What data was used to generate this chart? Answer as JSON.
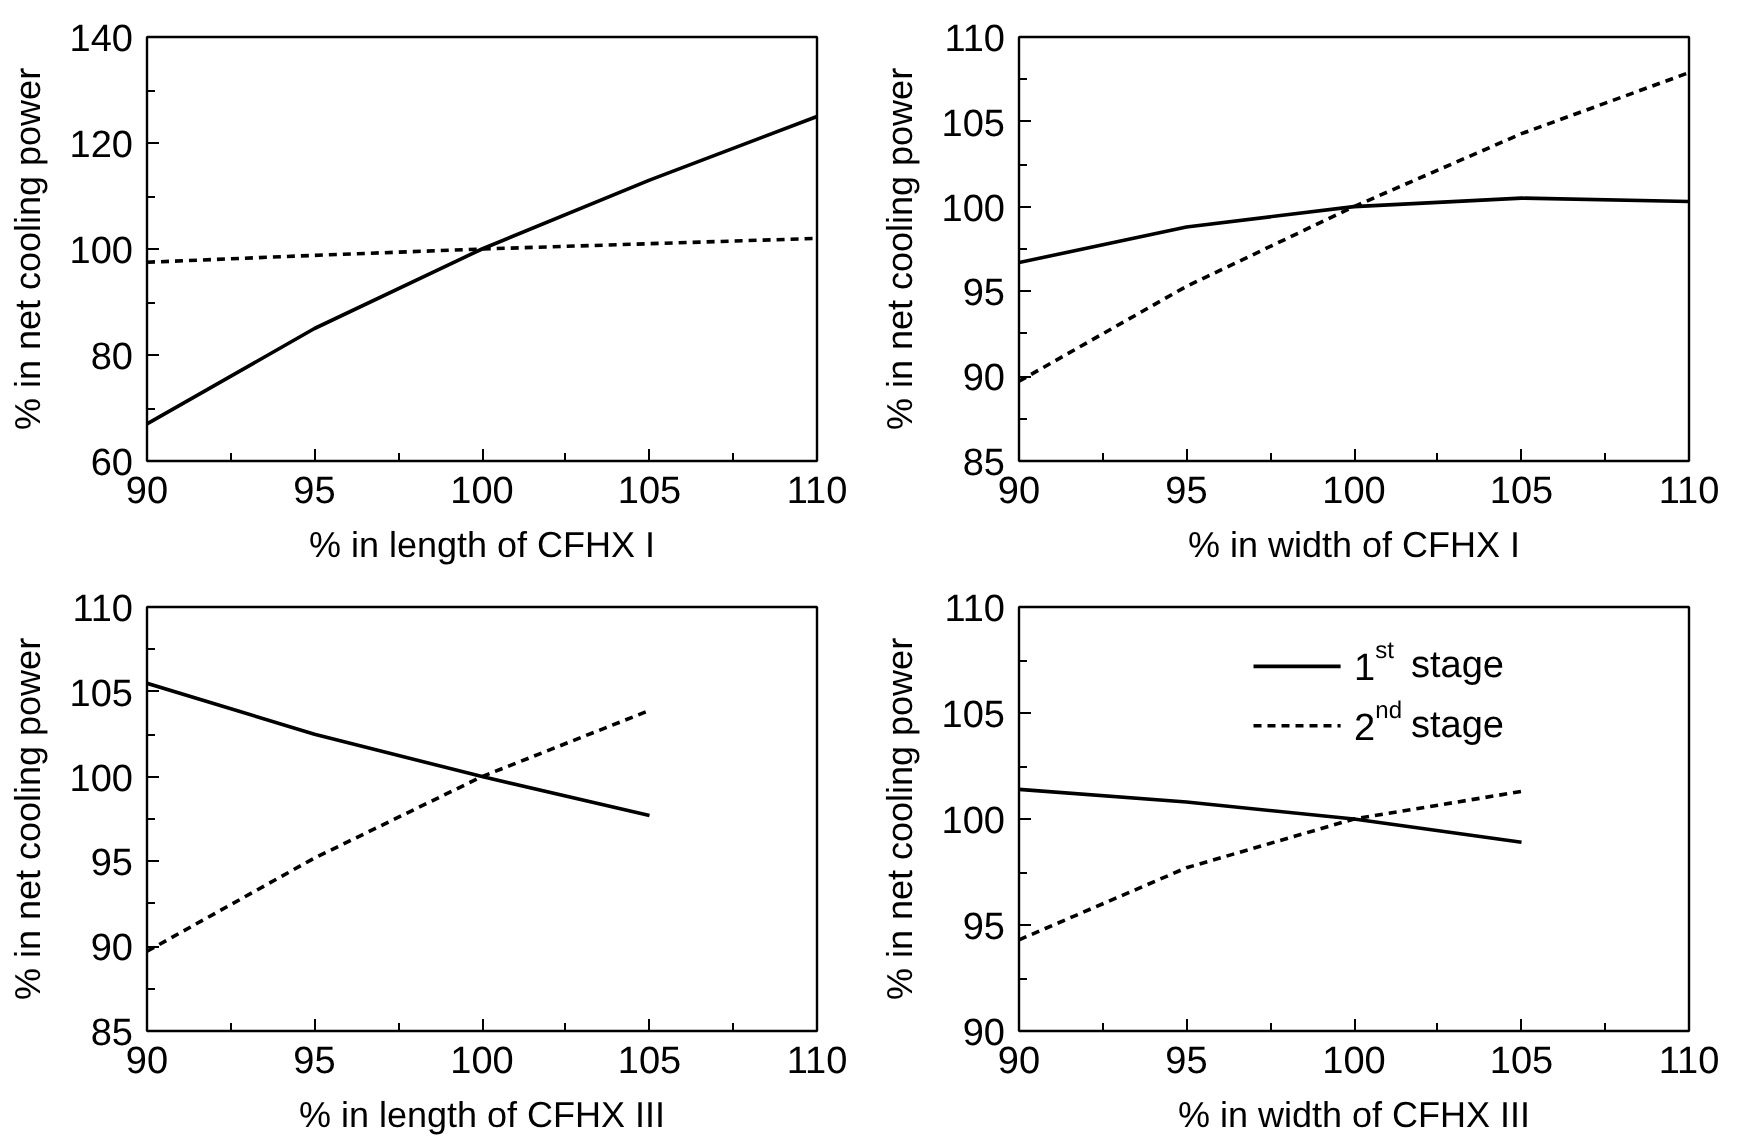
{
  "chart_data": [
    {
      "type": "line",
      "xlabel": "% in length of CFHX I",
      "ylabel": "% in net cooling power",
      "x": [
        90,
        95,
        100,
        105,
        110
      ],
      "series": [
        {
          "color": "#000000",
          "line_style": "solid",
          "values": [
            67,
            85,
            100,
            113,
            125
          ]
        },
        {
          "color": "#000000",
          "line_style": "dashed",
          "values": [
            97.5,
            98.8,
            100,
            101,
            102
          ]
        }
      ],
      "xlim": [
        90,
        110
      ],
      "xticks": [
        90,
        {
          "value": 92.5,
          "label": null
        },
        95,
        {
          "value": 97.5,
          "label": null
        },
        100,
        {
          "value": 102.5,
          "label": null
        },
        105,
        {
          "value": 107.5,
          "label": null
        },
        110
      ],
      "ylim": [
        60,
        140
      ],
      "yticks": [
        60,
        {
          "value": 70,
          "label": null
        },
        80,
        {
          "value": 90,
          "label": null
        },
        100,
        {
          "value": 110,
          "label": null
        },
        120,
        {
          "value": 130,
          "label": null
        },
        140
      ],
      "grid": false,
      "legend": false,
      "marker": "none"
    },
    {
      "type": "line",
      "xlabel": "% in width of CFHX I",
      "ylabel": "% in net cooling power",
      "x": [
        90,
        95,
        100,
        105,
        110
      ],
      "series": [
        {
          "color": "#000000",
          "line_style": "solid",
          "values": [
            96.7,
            98.8,
            100,
            100.5,
            100.3
          ]
        },
        {
          "color": "#000000",
          "line_style": "dashed",
          "values": [
            89.7,
            95.3,
            100,
            104.3,
            107.9
          ]
        }
      ],
      "xlim": [
        90,
        110
      ],
      "xticks": [
        90,
        {
          "value": 92.5,
          "label": null
        },
        95,
        {
          "value": 97.5,
          "label": null
        },
        100,
        {
          "value": 102.5,
          "label": null
        },
        105,
        {
          "value": 107.5,
          "label": null
        },
        110
      ],
      "ylim": [
        85,
        110
      ],
      "yticks": [
        85,
        {
          "value": 87.5,
          "label": null
        },
        90,
        {
          "value": 92.5,
          "label": null
        },
        95,
        {
          "value": 97.5,
          "label": null
        },
        100,
        {
          "value": 102.5,
          "label": null
        },
        105,
        {
          "value": 107.5,
          "label": null
        },
        110
      ],
      "grid": false,
      "legend": false,
      "marker": "none"
    },
    {
      "type": "line",
      "xlabel": "% in length of CFHX III",
      "ylabel": "% in net cooling power",
      "x": [
        90,
        95,
        100,
        105
      ],
      "series": [
        {
          "color": "#000000",
          "line_style": "solid",
          "values": [
            105.5,
            102.5,
            100,
            97.7
          ]
        },
        {
          "color": "#000000",
          "line_style": "dashed",
          "values": [
            89.7,
            95.2,
            100,
            103.9
          ]
        }
      ],
      "xlim": [
        90,
        110
      ],
      "xticks": [
        90,
        {
          "value": 92.5,
          "label": null
        },
        95,
        {
          "value": 97.5,
          "label": null
        },
        100,
        {
          "value": 102.5,
          "label": null
        },
        105,
        {
          "value": 107.5,
          "label": null
        },
        110
      ],
      "ylim": [
        85,
        110
      ],
      "yticks": [
        85,
        {
          "value": 87.5,
          "label": null
        },
        90,
        {
          "value": 92.5,
          "label": null
        },
        95,
        {
          "value": 97.5,
          "label": null
        },
        100,
        {
          "value": 102.5,
          "label": null
        },
        105,
        {
          "value": 107.5,
          "label": null
        },
        110
      ],
      "grid": false,
      "legend": false,
      "marker": "none"
    },
    {
      "type": "line",
      "xlabel": "% in width of CFHX III",
      "ylabel": "% in net cooling power",
      "x": [
        90,
        95,
        100,
        105
      ],
      "series": [
        {
          "name": "1$^{st}$ stage",
          "color": "#000000",
          "line_style": "solid",
          "values": [
            101.4,
            100.8,
            100,
            98.9
          ]
        },
        {
          "name": "2$^{nd}$ stage",
          "color": "#000000",
          "line_style": "dashed",
          "values": [
            94.3,
            97.7,
            100,
            101.3
          ]
        }
      ],
      "xlim": [
        90,
        110
      ],
      "xticks": [
        90,
        {
          "value": 92.5,
          "label": null
        },
        95,
        {
          "value": 97.5,
          "label": null
        },
        100,
        {
          "value": 102.5,
          "label": null
        },
        105,
        {
          "value": 107.5,
          "label": null
        },
        110
      ],
      "ylim": [
        90,
        110
      ],
      "yticks": [
        90,
        {
          "value": 92.5,
          "label": null
        },
        95,
        {
          "value": 97.5,
          "label": null
        },
        100,
        {
          "value": 102.5,
          "label": null
        },
        105,
        {
          "value": 107.5,
          "label": null
        },
        110
      ],
      "grid": false,
      "legend": "top right",
      "marker": "none"
    }
  ]
}
